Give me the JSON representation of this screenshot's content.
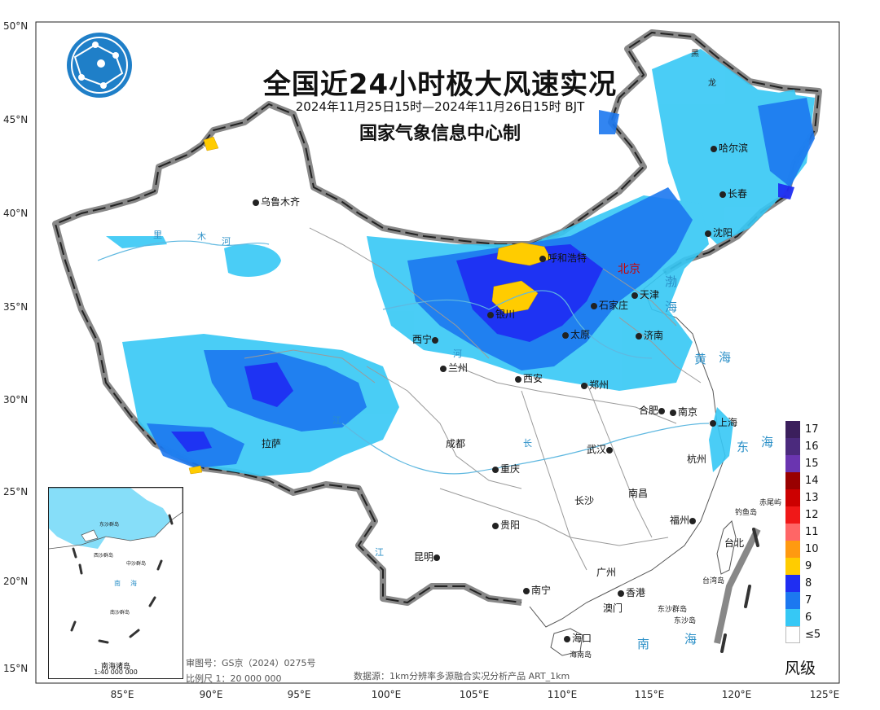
{
  "title": "全国近24小时极大风速实况",
  "date_range": "2024年11月25日15时—2024年11月26日15时 BJT",
  "organization": "国家气象信息中心制",
  "latitude_labels": [
    "50°N",
    "45°N",
    "40°N",
    "35°N",
    "30°N",
    "25°N",
    "20°N",
    "15°N"
  ],
  "longitude_labels": [
    "85°E",
    "90°E",
    "95°E",
    "100°E",
    "105°E",
    "110°E",
    "115°E",
    "120°E",
    "125°E"
  ],
  "cities": [
    "乌鲁木齐",
    "哈尔滨",
    "长春",
    "沈阳",
    "呼和浩特",
    "北京",
    "天津",
    "石家庄",
    "太原",
    "银川",
    "济南",
    "西宁",
    "兰州",
    "郑州",
    "西安",
    "合肥",
    "南京",
    "上海",
    "拉萨",
    "成都",
    "武汉",
    "杭州",
    "重庆",
    "南昌",
    "长沙",
    "福州",
    "贵阳",
    "台北",
    "昆明",
    "广州",
    "南宁",
    "香港",
    "澳门",
    "海口"
  ],
  "seas": [
    "渤",
    "海",
    "黄",
    "海",
    "东",
    "海",
    "南",
    "海"
  ],
  "rivers": [
    "里",
    "木",
    "河",
    "河",
    "长",
    "江",
    "江"
  ],
  "islands": [
    "赤尾屿",
    "钓鱼岛",
    "台湾岛",
    "东沙群岛",
    "东沙岛",
    "海南岛"
  ],
  "province_marks": [
    "黑",
    "龙"
  ],
  "legend": {
    "title": "风级",
    "levels": [
      {
        "label": "17",
        "color": "#3b1f5c"
      },
      {
        "label": "16",
        "color": "#4b2a7d"
      },
      {
        "label": "15",
        "color": "#6a35b0"
      },
      {
        "label": "14",
        "color": "#990000"
      },
      {
        "label": "13",
        "color": "#cc0000"
      },
      {
        "label": "12",
        "color": "#f01818"
      },
      {
        "label": "11",
        "color": "#ff6666"
      },
      {
        "label": "10",
        "color": "#ff9a10"
      },
      {
        "label": "9",
        "color": "#ffcc00"
      },
      {
        "label": "8",
        "color": "#1f2ef2"
      },
      {
        "label": "7",
        "color": "#1c78f0"
      },
      {
        "label": "6",
        "color": "#36c8f5"
      },
      {
        "label": "≤5",
        "color": "#ffffff"
      }
    ]
  },
  "inset": {
    "caption": "南海诸岛",
    "scale": "1:40 000 000",
    "labels": [
      "东沙群岛",
      "西沙群岛",
      "中沙群岛",
      "南沙群岛",
      "南",
      "海"
    ]
  },
  "footer": {
    "review_number": "审图号：GS京（2024）0275号",
    "scale": "比例尺 1：20 000 000",
    "data_source": "数据源：1km分辨率多源融合实况分析产品 ART_1km"
  },
  "logo_icon": "globe-network-logo-icon"
}
